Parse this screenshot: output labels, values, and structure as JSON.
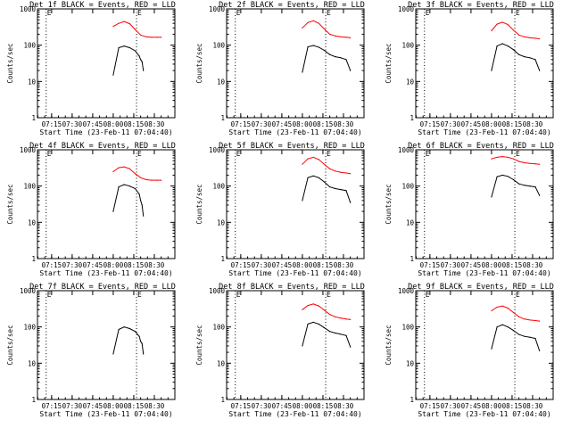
{
  "page": {
    "background": "#ffffff",
    "axis_color": "#000000"
  },
  "chart_data": [
    {
      "type": "line",
      "title": "Det 1f BLACK = Events, RED = LLD",
      "xlabel": "Start Time (23-Feb-11 07:04:40)",
      "ylabel": "Counts/sec",
      "yscale": "log",
      "ylim": [
        1,
        1000
      ],
      "yticks": [
        "1",
        "10",
        "100",
        "1000"
      ],
      "xticks": [
        "07:15",
        "07:30",
        "07:45",
        "08:00",
        "08:15",
        "08:30"
      ],
      "markers": [
        {
          "label": "E",
          "x": "07:11"
        },
        {
          "label": "E",
          "x": "08:17"
        }
      ],
      "series": [
        {
          "name": "Events",
          "color": "#000000",
          "x": [
            "08:00",
            "08:04",
            "08:08",
            "08:12",
            "08:16",
            "08:19",
            "08:20",
            "08:21",
            "08:22"
          ],
          "y": [
            15,
            85,
            95,
            85,
            70,
            50,
            40,
            35,
            20
          ]
        },
        {
          "name": "LLD",
          "color": "#ff0000",
          "x": [
            "08:00",
            "08:04",
            "08:08",
            "08:12",
            "08:16",
            "08:20",
            "08:24",
            "08:28",
            "08:32",
            "08:35"
          ],
          "y": [
            330,
            400,
            450,
            390,
            270,
            190,
            170,
            165,
            165,
            165
          ]
        }
      ]
    },
    {
      "type": "line",
      "title": "Det 2f BLACK = Events, RED = LLD",
      "xlabel": "Start Time (23-Feb-11 07:04:40)",
      "ylabel": "Counts/sec",
      "yscale": "log",
      "ylim": [
        1,
        1000
      ],
      "yticks": [
        "1",
        "10",
        "100",
        "1000"
      ],
      "xticks": [
        "07:15",
        "07:30",
        "07:45",
        "08:00",
        "08:15",
        "08:30"
      ],
      "markers": [
        {
          "label": "E",
          "x": "07:11"
        },
        {
          "label": "E",
          "x": "08:17"
        }
      ],
      "series": [
        {
          "name": "Events",
          "color": "#000000",
          "x": [
            "08:00",
            "08:04",
            "08:08",
            "08:12",
            "08:16",
            "08:20",
            "08:24",
            "08:28",
            "08:32",
            "08:35"
          ],
          "y": [
            18,
            90,
            98,
            88,
            72,
            55,
            48,
            45,
            40,
            20
          ]
        },
        {
          "name": "LLD",
          "color": "#ff0000",
          "x": [
            "08:00",
            "08:04",
            "08:08",
            "08:12",
            "08:16",
            "08:20",
            "08:24",
            "08:28",
            "08:32",
            "08:35"
          ],
          "y": [
            300,
            420,
            470,
            400,
            280,
            200,
            180,
            170,
            165,
            160
          ]
        }
      ]
    },
    {
      "type": "line",
      "title": "Det 3f BLACK = Events, RED = LLD",
      "xlabel": "Start Time (23-Feb-11 07:04:40)",
      "ylabel": "Counts/sec",
      "yscale": "log",
      "ylim": [
        1,
        1000
      ],
      "yticks": [
        "1",
        "10",
        "100",
        "1000"
      ],
      "xticks": [
        "07:15",
        "07:30",
        "07:45",
        "08:00",
        "08:15",
        "08:30"
      ],
      "markers": [
        {
          "label": "E",
          "x": "07:11"
        },
        {
          "label": "E",
          "x": "08:17"
        }
      ],
      "series": [
        {
          "name": "Events",
          "color": "#000000",
          "x": [
            "08:00",
            "08:04",
            "08:08",
            "08:12",
            "08:16",
            "08:20",
            "08:24",
            "08:28",
            "08:32",
            "08:35"
          ],
          "y": [
            20,
            95,
            110,
            95,
            75,
            55,
            48,
            45,
            40,
            20
          ]
        },
        {
          "name": "LLD",
          "color": "#ff0000",
          "x": [
            "08:00",
            "08:04",
            "08:08",
            "08:12",
            "08:16",
            "08:20",
            "08:24",
            "08:28",
            "08:32",
            "08:35"
          ],
          "y": [
            250,
            380,
            430,
            370,
            260,
            190,
            170,
            160,
            155,
            150
          ]
        }
      ]
    },
    {
      "type": "line",
      "title": "Det 4f BLACK = Events, RED = LLD",
      "xlabel": "Start Time (23-Feb-11 07:04:40)",
      "ylabel": "Counts/sec",
      "yscale": "log",
      "ylim": [
        1,
        1000
      ],
      "yticks": [
        "1",
        "10",
        "100",
        "1000"
      ],
      "xticks": [
        "07:15",
        "07:30",
        "07:45",
        "08:00",
        "08:15",
        "08:30"
      ],
      "markers": [
        {
          "label": "E",
          "x": "07:11"
        },
        {
          "label": "E",
          "x": "08:17"
        }
      ],
      "series": [
        {
          "name": "Events",
          "color": "#000000",
          "x": [
            "08:00",
            "08:04",
            "08:08",
            "08:12",
            "08:16",
            "08:19",
            "08:20",
            "08:21",
            "08:22"
          ],
          "y": [
            20,
            95,
            110,
            100,
            85,
            60,
            40,
            30,
            15
          ]
        },
        {
          "name": "LLD",
          "color": "#ff0000",
          "x": [
            "08:00",
            "08:04",
            "08:08",
            "08:12",
            "08:16",
            "08:20",
            "08:24",
            "08:28",
            "08:32",
            "08:35"
          ],
          "y": [
            250,
            320,
            340,
            300,
            220,
            170,
            150,
            145,
            145,
            145
          ]
        }
      ]
    },
    {
      "type": "line",
      "title": "Det 5f BLACK = Events, RED = LLD",
      "xlabel": "Start Time (23-Feb-11 07:04:40)",
      "ylabel": "Counts/sec",
      "yscale": "log",
      "ylim": [
        1,
        1000
      ],
      "yticks": [
        "1",
        "10",
        "100",
        "1000"
      ],
      "xticks": [
        "07:15",
        "07:30",
        "07:45",
        "08:00",
        "08:15",
        "08:30"
      ],
      "markers": [
        {
          "label": "E",
          "x": "07:11"
        },
        {
          "label": "E",
          "x": "08:17"
        }
      ],
      "series": [
        {
          "name": "Events",
          "color": "#000000",
          "x": [
            "08:00",
            "08:04",
            "08:08",
            "08:12",
            "08:16",
            "08:20",
            "08:24",
            "08:28",
            "08:32",
            "08:35"
          ],
          "y": [
            40,
            170,
            190,
            170,
            130,
            95,
            85,
            80,
            75,
            35
          ]
        },
        {
          "name": "LLD",
          "color": "#ff0000",
          "x": [
            "08:00",
            "08:04",
            "08:08",
            "08:12",
            "08:16",
            "08:20",
            "08:24",
            "08:28",
            "08:32",
            "08:35"
          ],
          "y": [
            400,
            560,
            620,
            540,
            400,
            300,
            260,
            240,
            230,
            220
          ]
        }
      ]
    },
    {
      "type": "line",
      "title": "Det 6f BLACK = Events, RED = LLD",
      "xlabel": "Start Time (23-Feb-11 07:04:40)",
      "ylabel": "Counts/sec",
      "yscale": "log",
      "ylim": [
        1,
        1000
      ],
      "yticks": [
        "1",
        "10",
        "100",
        "1000"
      ],
      "xticks": [
        "07:15",
        "07:30",
        "07:45",
        "08:00",
        "08:15",
        "08:30"
      ],
      "markers": [
        {
          "label": "E",
          "x": "07:11"
        },
        {
          "label": "E",
          "x": "08:17"
        }
      ],
      "series": [
        {
          "name": "Events",
          "color": "#000000",
          "x": [
            "08:00",
            "08:04",
            "08:08",
            "08:12",
            "08:16",
            "08:20",
            "08:24",
            "08:28",
            "08:32",
            "08:35"
          ],
          "y": [
            50,
            180,
            200,
            185,
            150,
            115,
            105,
            100,
            95,
            55
          ]
        },
        {
          "name": "LLD",
          "color": "#ff0000",
          "x": [
            "08:00",
            "08:04",
            "08:08",
            "08:12",
            "08:16",
            "08:20",
            "08:24",
            "08:28",
            "08:32",
            "08:35"
          ],
          "y": [
            560,
            620,
            650,
            620,
            560,
            480,
            440,
            420,
            410,
            400
          ]
        }
      ]
    },
    {
      "type": "line",
      "title": "Det 7f BLACK = Events, RED = LLD",
      "xlabel": "Start Time (23-Feb-11 07:04:40)",
      "ylabel": "Counts/sec",
      "yscale": "log",
      "ylim": [
        1,
        1000
      ],
      "yticks": [
        "1",
        "10",
        "100",
        "1000"
      ],
      "xticks": [
        "07:15",
        "07:30",
        "07:45",
        "08:00",
        "08:15",
        "08:30"
      ],
      "markers": [
        {
          "label": "E",
          "x": "07:11"
        },
        {
          "label": "E",
          "x": "08:17"
        }
      ],
      "series": [
        {
          "name": "Events",
          "color": "#000000",
          "x": [
            "08:00",
            "08:04",
            "08:08",
            "08:12",
            "08:16",
            "08:19",
            "08:20",
            "08:21",
            "08:22"
          ],
          "y": [
            18,
            85,
            100,
            90,
            75,
            55,
            40,
            35,
            18
          ]
        }
      ]
    },
    {
      "type": "line",
      "title": "Det 8f BLACK = Events, RED = LLD",
      "xlabel": "Start Time (23-Feb-11 07:04:40)",
      "ylabel": "Counts/sec",
      "yscale": "log",
      "ylim": [
        1,
        1000
      ],
      "yticks": [
        "1",
        "10",
        "100",
        "1000"
      ],
      "xticks": [
        "07:15",
        "07:30",
        "07:45",
        "08:00",
        "08:15",
        "08:30"
      ],
      "markers": [
        {
          "label": "E",
          "x": "07:11"
        },
        {
          "label": "E",
          "x": "08:17"
        }
      ],
      "series": [
        {
          "name": "Events",
          "color": "#000000",
          "x": [
            "08:00",
            "08:04",
            "08:08",
            "08:12",
            "08:16",
            "08:20",
            "08:24",
            "08:28",
            "08:32",
            "08:35"
          ],
          "y": [
            30,
            120,
            135,
            120,
            95,
            75,
            68,
            63,
            58,
            28
          ]
        },
        {
          "name": "LLD",
          "color": "#ff0000",
          "x": [
            "08:00",
            "08:04",
            "08:08",
            "08:12",
            "08:16",
            "08:20",
            "08:24",
            "08:28",
            "08:32",
            "08:35"
          ],
          "y": [
            300,
            390,
            430,
            380,
            290,
            220,
            190,
            175,
            165,
            160
          ]
        }
      ]
    },
    {
      "type": "line",
      "title": "Det 9f BLACK = Events, RED = LLD",
      "xlabel": "Start Time (23-Feb-11 07:04:40)",
      "ylabel": "Counts/sec",
      "yscale": "log",
      "ylim": [
        1,
        1000
      ],
      "yticks": [
        "1",
        "10",
        "100",
        "1000"
      ],
      "xticks": [
        "07:15",
        "07:30",
        "07:45",
        "08:00",
        "08:15",
        "08:30"
      ],
      "markers": [
        {
          "label": "E",
          "x": "07:11"
        },
        {
          "label": "E",
          "x": "08:17"
        }
      ],
      "series": [
        {
          "name": "Events",
          "color": "#000000",
          "x": [
            "08:00",
            "08:04",
            "08:08",
            "08:12",
            "08:16",
            "08:20",
            "08:24",
            "08:28",
            "08:32",
            "08:35"
          ],
          "y": [
            25,
            100,
            115,
            100,
            80,
            62,
            55,
            52,
            48,
            22
          ]
        },
        {
          "name": "LLD",
          "color": "#ff0000",
          "x": [
            "08:00",
            "08:04",
            "08:08",
            "08:12",
            "08:16",
            "08:20",
            "08:24",
            "08:28",
            "08:32",
            "08:35"
          ],
          "y": [
            280,
            350,
            380,
            330,
            250,
            190,
            165,
            155,
            150,
            145
          ]
        }
      ]
    }
  ]
}
